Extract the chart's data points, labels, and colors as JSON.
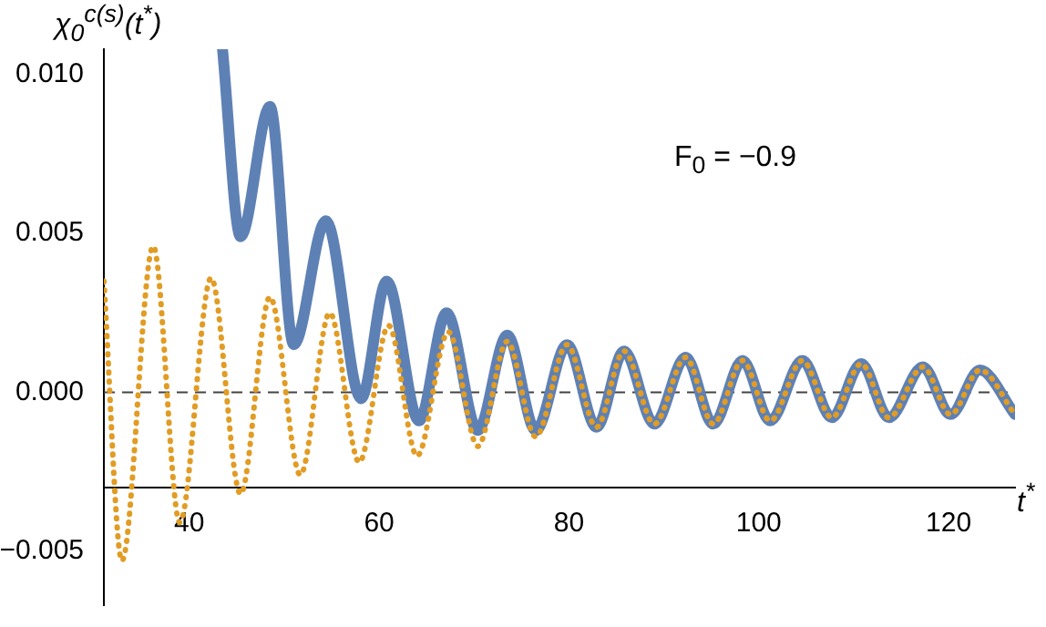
{
  "chart_data": {
    "type": "line",
    "ylabel": "χ$_{0}$$^{c(s)}$(t$^{*}$)",
    "xlabel": "t$^{*}$",
    "annotations": [
      "F$_{0}$ = −0.9"
    ],
    "xlim": [
      31,
      127
    ],
    "xticks": [
      40,
      60,
      80,
      100,
      120
    ],
    "ylim": [
      -0.0067,
      0.0108
    ],
    "yticks": [
      {
        "value": -0.005,
        "label": "−0.005"
      },
      {
        "value": 0,
        "label": "0.000"
      },
      {
        "value": 0.005,
        "label": "0.005"
      },
      {
        "value": 0.01,
        "label": "0.010"
      }
    ],
    "grid": false,
    "legend": false,
    "marker": "none",
    "ref_lines": [
      {
        "axis": "y",
        "value": 0,
        "color": "#444444",
        "line_style": "dashed"
      }
    ],
    "series": [
      {
        "color": "#5e81b5",
        "line_style": "solid",
        "x": [
          43.5,
          45.4,
          48.5,
          51.0,
          54.4,
          58.1,
          60.8,
          64.2,
          67.1,
          70.4,
          73.5,
          76.5,
          79.8,
          82.9,
          85.8,
          89.0,
          92.3,
          95.2,
          98.3,
          101.2,
          104.6,
          107.7,
          110.8,
          113.7,
          117.3,
          120.2,
          123.3,
          127
        ],
        "values": [
          0.0108,
          0.0049,
          0.009,
          0.0015,
          0.0054,
          -0.0002,
          0.0035,
          -0.0009,
          0.0025,
          -0.0012,
          0.0018,
          -0.0012,
          0.0015,
          -0.0011,
          0.0013,
          -0.001,
          0.0011,
          -0.001,
          0.001,
          -0.0009,
          0.001,
          -0.0008,
          0.0009,
          -0.0008,
          0.0008,
          -0.0007,
          0.0007,
          -0.0007
        ]
      },
      {
        "color": "#e19c24",
        "line_style": "dotted",
        "x": [
          31,
          32.9,
          36.2,
          39.0,
          42.3,
          45.4,
          48.5,
          51.7,
          54.8,
          57.9,
          61.0,
          64.0,
          67.3,
          70.4,
          73.5,
          76.5,
          79.8,
          82.9,
          85.8,
          89.0,
          92.3,
          95.2,
          98.3,
          101.2,
          104.6,
          107.7,
          110.8,
          113.7,
          117.3,
          120.2,
          123.3,
          127
        ],
        "values": [
          0.0035,
          -0.0053,
          0.0046,
          -0.0041,
          0.0036,
          -0.0032,
          0.003,
          -0.0026,
          0.0025,
          -0.0022,
          0.0021,
          -0.002,
          0.0019,
          -0.0017,
          0.0016,
          -0.0014,
          0.0015,
          -0.0011,
          0.0013,
          -0.001,
          0.0011,
          -0.001,
          0.001,
          -0.0009,
          0.001,
          -0.0008,
          0.0009,
          -0.0008,
          0.0008,
          -0.0007,
          0.0007,
          -0.0007
        ]
      }
    ]
  }
}
